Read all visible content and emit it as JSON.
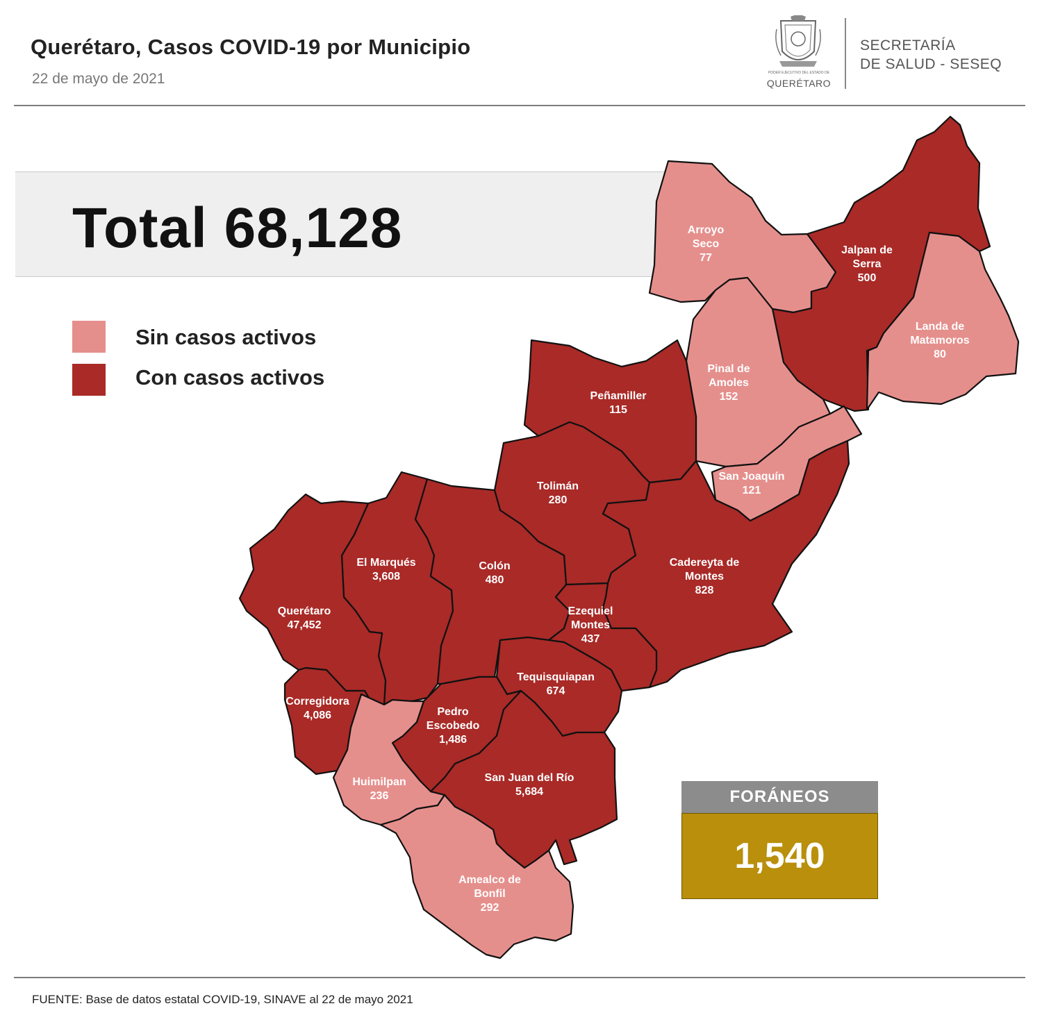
{
  "header": {
    "title": "Querétaro, Casos COVID-19 por Municipio",
    "date": "22 de mayo de 2021",
    "logo_subtext": "PODER EJECUTIVO DEL ESTADO DE",
    "logo_caption": "QUERÉTARO",
    "agency_line1": "SECRETARÍA",
    "agency_line2": "DE SALUD - SESEQ"
  },
  "total": {
    "text": "Total 68,128",
    "value": 68128
  },
  "legend": [
    {
      "label": "Sin casos activos",
      "color": "#e58f8c"
    },
    {
      "label": "Con casos activos",
      "color": "#a92a27"
    }
  ],
  "colors": {
    "sin_casos": "#e58f8c",
    "con_casos": "#a92a27",
    "foraneos_header": "#8c8c8c",
    "foraneos_box": "#b98f0b"
  },
  "municipalities": [
    {
      "id": "arroyo-seco",
      "label_lines": [
        "Arroyo",
        "Seco"
      ],
      "cases": "77",
      "active": false
    },
    {
      "id": "jalpan",
      "label_lines": [
        "Jalpan de",
        "Serra"
      ],
      "cases": "500",
      "active": true
    },
    {
      "id": "landa",
      "label_lines": [
        "Landa de",
        "Matamoros"
      ],
      "cases": "80",
      "active": false
    },
    {
      "id": "pinal",
      "label_lines": [
        "Pinal de",
        "Amoles"
      ],
      "cases": "152",
      "active": false
    },
    {
      "id": "penamiller",
      "label_lines": [
        "Peñamiller"
      ],
      "cases": "115",
      "active": true
    },
    {
      "id": "san-joaquin",
      "label_lines": [
        "San Joaquín"
      ],
      "cases": "121",
      "active": false
    },
    {
      "id": "toliman",
      "label_lines": [
        "Tolimán"
      ],
      "cases": "280",
      "active": true
    },
    {
      "id": "cadereyta",
      "label_lines": [
        "Cadereyta de",
        "Montes"
      ],
      "cases": "828",
      "active": true
    },
    {
      "id": "el-marques",
      "label_lines": [
        "El  Marqués"
      ],
      "cases": "3,608",
      "active": true
    },
    {
      "id": "colon",
      "label_lines": [
        "Colón"
      ],
      "cases": "480",
      "active": true
    },
    {
      "id": "queretaro",
      "label_lines": [
        "Querétaro"
      ],
      "cases": "47,452",
      "active": true
    },
    {
      "id": "ezequiel",
      "label_lines": [
        "Ezequiel",
        "Montes"
      ],
      "cases": "437",
      "active": true
    },
    {
      "id": "tequisquiapan",
      "label_lines": [
        "Tequisquiapan"
      ],
      "cases": "674",
      "active": true
    },
    {
      "id": "corregidora",
      "label_lines": [
        "Corregidora"
      ],
      "cases": "4,086",
      "active": true
    },
    {
      "id": "pedro-escobedo",
      "label_lines": [
        "Pedro",
        "Escobedo"
      ],
      "cases": "1,486",
      "active": true
    },
    {
      "id": "huimilpan",
      "label_lines": [
        "Huimilpan"
      ],
      "cases": "236",
      "active": false
    },
    {
      "id": "san-juan",
      "label_lines": [
        "San Juan del Río"
      ],
      "cases": "5,684",
      "active": true
    },
    {
      "id": "amealco",
      "label_lines": [
        "Amealco de",
        "Bonfil"
      ],
      "cases": "292",
      "active": false
    }
  ],
  "foraneos": {
    "title": "FORÁNEOS",
    "value": "1,540"
  },
  "footer": {
    "source": "FUENTE:  Base de datos estatal COVID-19,  SINAVE  al 22 de mayo 2021"
  }
}
